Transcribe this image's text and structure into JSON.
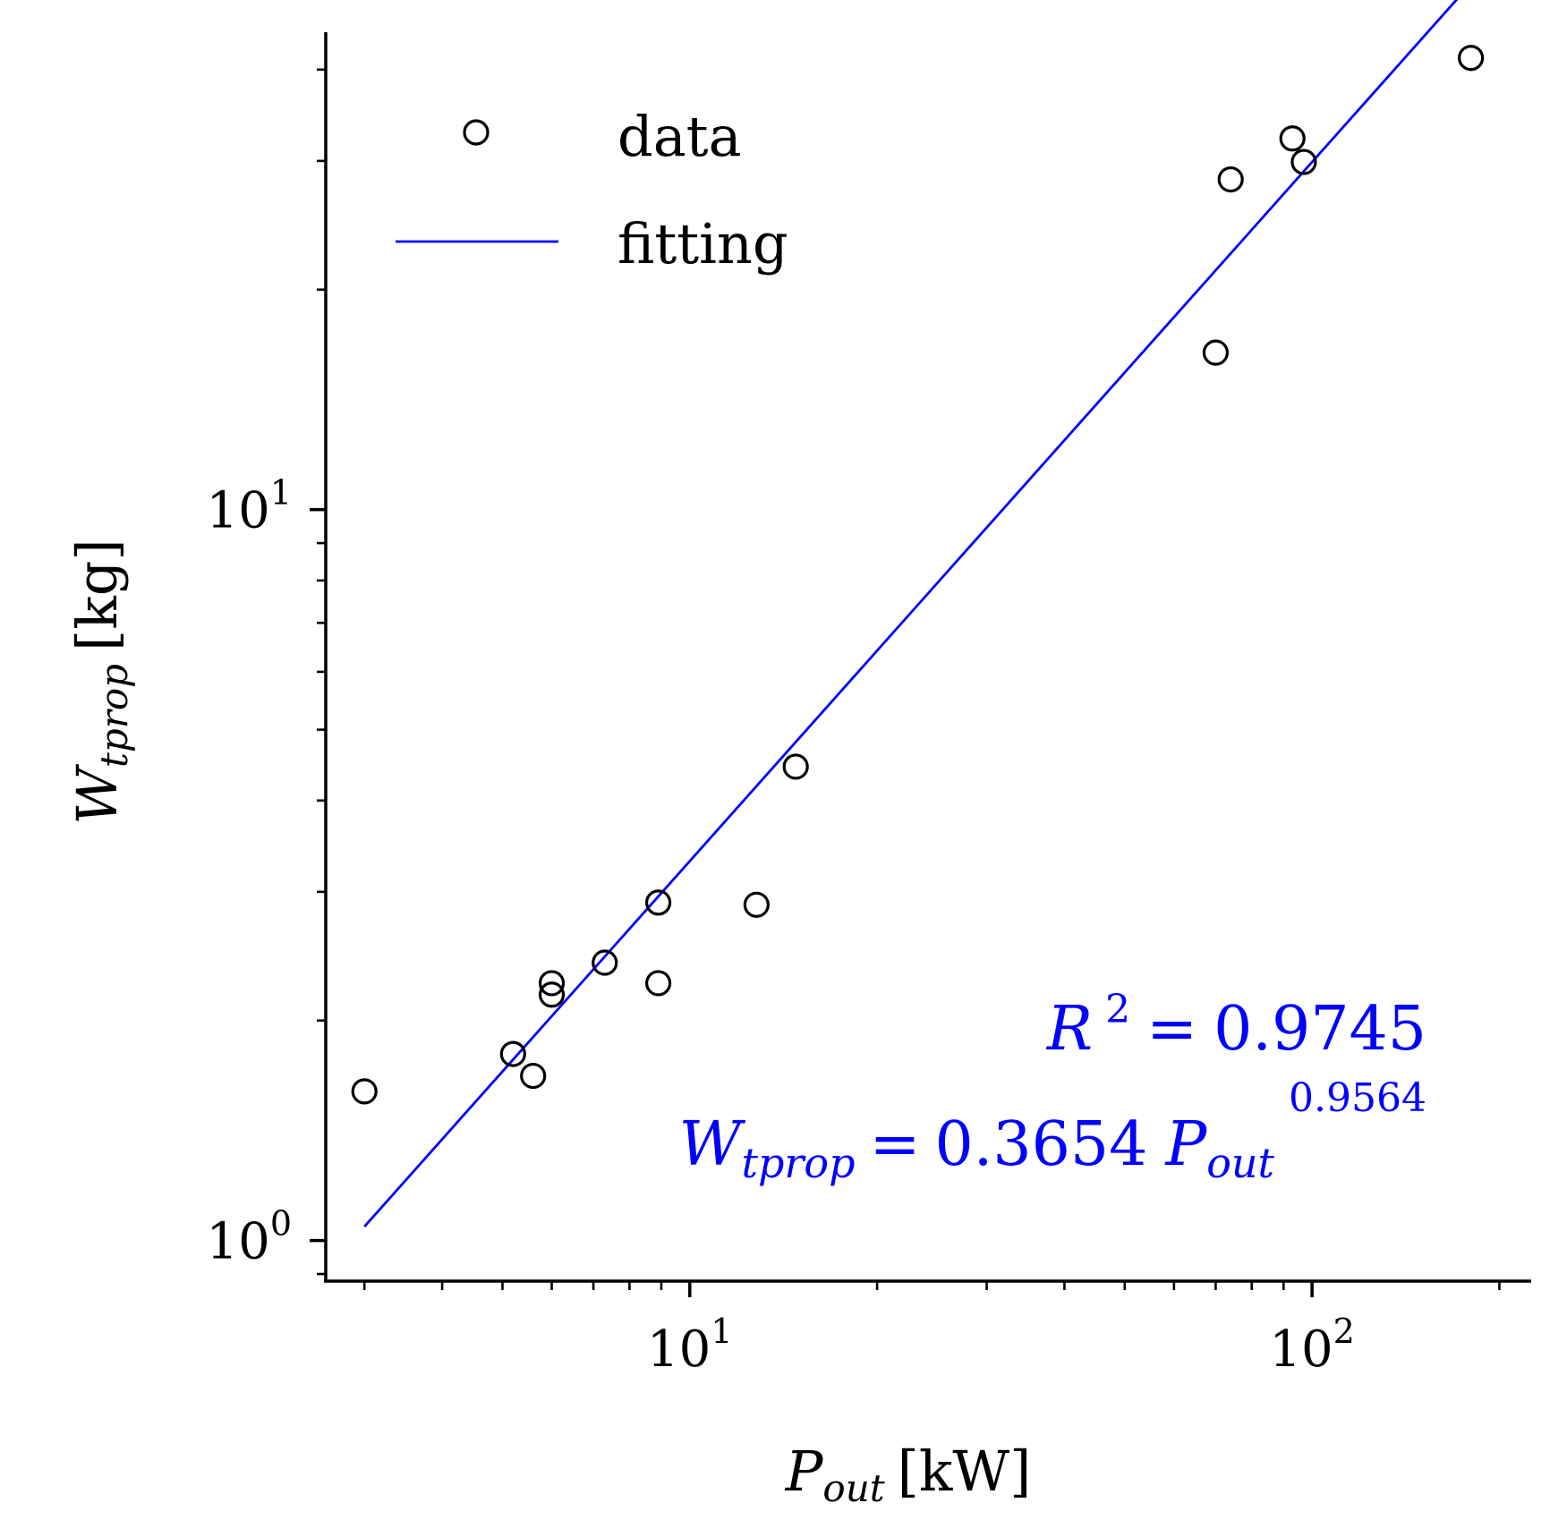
{
  "chart_data": {
    "type": "scatter",
    "xscale": "log",
    "yscale": "log",
    "xlim": [
      2.6,
      225
    ],
    "ylim": [
      0.88,
      45
    ],
    "xlabel": {
      "main": "P",
      "sub": "out",
      "unit": "[kW]"
    },
    "ylabel": {
      "main": "W",
      "sub": "tprop",
      "unit": "[kg]"
    },
    "x_ticks": [
      {
        "value": 10,
        "base": "10",
        "exp": "1"
      },
      {
        "value": 100,
        "base": "10",
        "exp": "2"
      }
    ],
    "y_ticks": [
      {
        "value": 1,
        "base": "10",
        "exp": "0"
      },
      {
        "value": 10,
        "base": "10",
        "exp": "1"
      }
    ],
    "series": [
      {
        "name": "data",
        "kind": "scatter",
        "marker": "open-circle",
        "color": "#000000",
        "points": [
          {
            "x": 3.0,
            "y": 1.6
          },
          {
            "x": 5.2,
            "y": 1.8
          },
          {
            "x": 5.6,
            "y": 1.68
          },
          {
            "x": 6.0,
            "y": 2.25
          },
          {
            "x": 6.0,
            "y": 2.17
          },
          {
            "x": 7.3,
            "y": 2.4
          },
          {
            "x": 8.9,
            "y": 2.25
          },
          {
            "x": 8.9,
            "y": 2.9
          },
          {
            "x": 12.8,
            "y": 2.88
          },
          {
            "x": 14.8,
            "y": 4.45
          },
          {
            "x": 70.0,
            "y": 16.4
          },
          {
            "x": 74.0,
            "y": 28.3
          },
          {
            "x": 93.0,
            "y": 32.2
          },
          {
            "x": 97.0,
            "y": 29.9
          },
          {
            "x": 180.0,
            "y": 41.5
          }
        ]
      },
      {
        "name": "fitting",
        "kind": "line",
        "color": "#0000ff",
        "coefficient": 0.3654,
        "exponent": 0.9564,
        "x_range": [
          3.0,
          180.0
        ]
      }
    ],
    "legend": {
      "position": "top-left",
      "entries": [
        {
          "label": "data",
          "symbol": "open-circle",
          "color": "#000000"
        },
        {
          "label": "fitting",
          "symbol": "line",
          "color": "#0000ff"
        }
      ]
    },
    "annotations": {
      "color": "#0000ff",
      "r2": {
        "symbol": "R",
        "power": "2",
        "eq": "=",
        "value": "0.9745"
      },
      "equation": {
        "lhs_main": "W",
        "lhs_sub": "tprop",
        "eq": "=",
        "coefficient": "0.3654",
        "var_main": "P",
        "var_sub": "out",
        "exponent": "0.9564"
      }
    }
  }
}
